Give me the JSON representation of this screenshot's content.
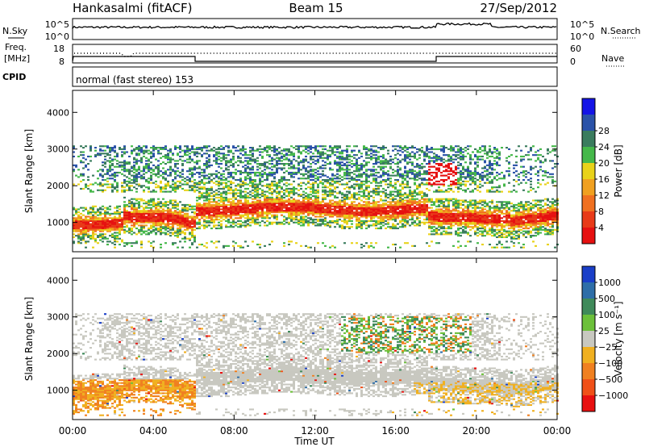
{
  "header": {
    "station": "Hankasalmi (fitACF)",
    "beam": "Beam 15",
    "date": "27/Sep/2012"
  },
  "top_panel": {
    "left_label": "N.Sky",
    "right_label": "N.Search",
    "ticks": [
      "10^5",
      "10^0"
    ]
  },
  "freq_panel": {
    "label_line1": "Freq.",
    "label_line2": "[MHz]",
    "left_ticks": [
      "18",
      "8"
    ],
    "right_ticks": [
      "60",
      "0"
    ],
    "right_label": "Nave"
  },
  "cpid_panel": {
    "label": "CPID",
    "mode": "normal (fast stereo) 153"
  },
  "chart_data": [
    {
      "type": "heatmap",
      "name": "Power",
      "ylabel": "Slant Range [km]",
      "yticks": [
        "1000",
        "2000",
        "3000",
        "4000"
      ],
      "ylim": [
        200,
        4600
      ],
      "colorbar_label": "Power [dB]",
      "colorbar_ticks": [
        "4",
        "8",
        "12",
        "16",
        "20",
        "24",
        "28"
      ],
      "colors": [
        "#1414e6",
        "#2a52a8",
        "#3a7c5e",
        "#45b84a",
        "#e8d21a",
        "#f0a020",
        "#f07020",
        "#e83a18",
        "#e61010"
      ]
    },
    {
      "type": "heatmap",
      "name": "Velocity",
      "ylabel": "Slant Range [km]",
      "yticks": [
        "1000",
        "2000",
        "3000",
        "4000"
      ],
      "ylim": [
        200,
        4600
      ],
      "colorbar_label": "Velocity  [m s⁻¹]",
      "colorbar_ticks": [
        "1000",
        "500",
        "100",
        "25",
        "−25",
        "−100",
        "−500",
        "−1000"
      ],
      "colors": [
        "#1a3fc8",
        "#2e6ea8",
        "#3f8a5a",
        "#6cc03a",
        "#c8c8c0",
        "#f0b020",
        "#f08020",
        "#f05018",
        "#e81010"
      ]
    }
  ],
  "time_axis": {
    "label": "Time UT",
    "ticks": [
      "00:00",
      "04:00",
      "08:00",
      "12:00",
      "16:00",
      "20:00",
      "00:00"
    ]
  }
}
